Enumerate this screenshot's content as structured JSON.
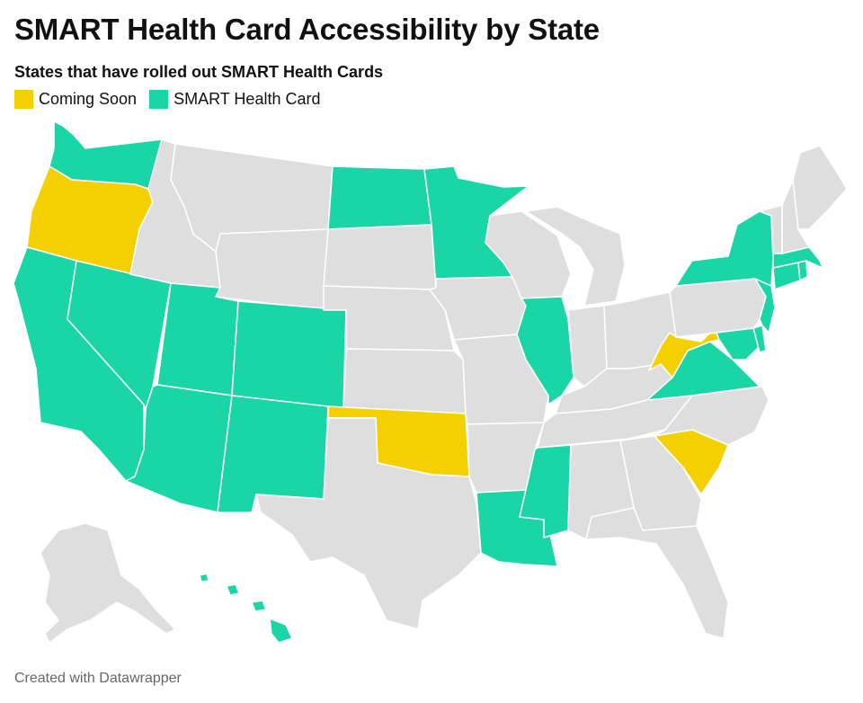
{
  "title": "SMART Health Card Accessibility by State",
  "subtitle": "States that have rolled out SMART Health Cards",
  "legend": [
    {
      "label": "Coming Soon",
      "color": "#f5d000"
    },
    {
      "label": "SMART Health Card",
      "color": "#1ad6a6"
    }
  ],
  "colors": {
    "none": "#dedede",
    "coming_soon": "#f5d000",
    "smart": "#1ad6a6"
  },
  "states": {
    "WA": "smart",
    "OR": "coming_soon",
    "CA": "smart",
    "NV": "smart",
    "ID": "none",
    "MT": "none",
    "WY": "none",
    "UT": "smart",
    "CO": "smart",
    "AZ": "smart",
    "NM": "smart",
    "ND": "smart",
    "SD": "none",
    "NE": "none",
    "KS": "none",
    "OK": "coming_soon",
    "TX": "none",
    "MN": "smart",
    "IA": "none",
    "MO": "none",
    "AR": "none",
    "LA": "smart",
    "WI": "none",
    "IL": "smart",
    "MI": "none",
    "IN": "none",
    "OH": "none",
    "KY": "none",
    "TN": "none",
    "MS": "smart",
    "AL": "none",
    "GA": "none",
    "FL": "none",
    "SC": "coming_soon",
    "NC": "none",
    "VA": "smart",
    "WV": "coming_soon",
    "MD": "smart",
    "DE": "smart",
    "NJ": "smart",
    "PA": "none",
    "NY": "smart",
    "CT": "smart",
    "RI": "smart",
    "MA": "smart",
    "VT": "none",
    "NH": "none",
    "ME": "none",
    "AK": "none",
    "HI": "smart"
  },
  "footer": "Created with Datawrapper"
}
